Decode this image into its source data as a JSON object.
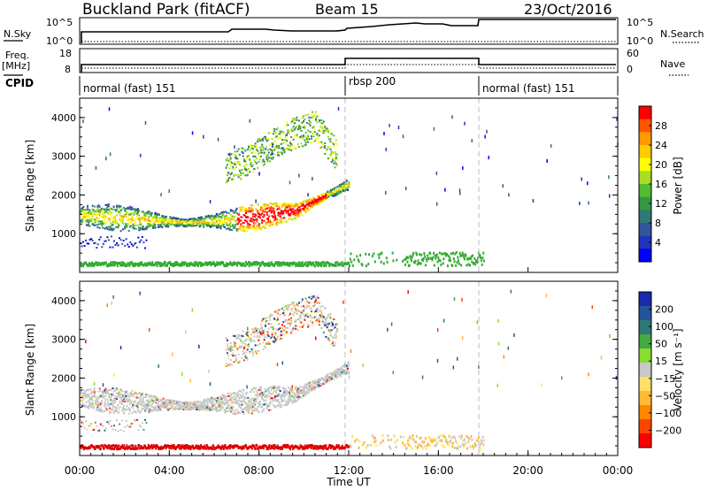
{
  "header": {
    "station": "Buckland Park (fitACF)",
    "beam": "Beam 15",
    "date": "23/Oct/2016"
  },
  "noise_panel": {
    "left_label": "N.Sky",
    "right_label": "N.Search",
    "left_ticks": [
      "10^5",
      "10^0"
    ],
    "right_ticks": [
      "10^5",
      "10^0"
    ]
  },
  "freq_panel": {
    "left_label": "Freq.",
    "left_unit": "[MHz]",
    "right_label": "Nave",
    "left_ticks": [
      "18",
      "8"
    ],
    "right_ticks": [
      "60",
      "0"
    ]
  },
  "cpid": {
    "label": "CPID",
    "segments": [
      {
        "text": "normal (fast) 151",
        "start_hour": 0
      },
      {
        "text": "rbsp 200",
        "start_hour": 12
      },
      {
        "text": "normal (fast) 151",
        "start_hour": 18
      }
    ]
  },
  "power_colorbar": {
    "label": "Power [dB]",
    "ticks": [
      "28",
      "24",
      "20",
      "16",
      "12",
      "8",
      "4"
    ],
    "colors": [
      "#ff0000",
      "#ff5500",
      "#ff9900",
      "#ffcc00",
      "#ffff00",
      "#aadd22",
      "#55bb33",
      "#339944",
      "#337777",
      "#335599",
      "#2233bb",
      "#0000ff"
    ]
  },
  "velocity_colorbar": {
    "label": "Velocity [m s⁻¹]",
    "ticks": [
      "200",
      "100",
      "50",
      "15",
      "−15",
      "−50",
      "−100",
      "−200"
    ],
    "colors": [
      "#1a2aa8",
      "#225599",
      "#2f7777",
      "#44aa44",
      "#88dd33",
      "#c8c8c8",
      "#ffe066",
      "#ffbb33",
      "#ff8800",
      "#ff4400",
      "#ff0000"
    ]
  },
  "x_axis": {
    "title": "Time UT",
    "ticks": [
      "00:00",
      "04:00",
      "08:00",
      "12:00",
      "16:00",
      "20:00",
      "00:00"
    ]
  },
  "chart_data": [
    {
      "type": "line",
      "title": "N.Sky / N.Search",
      "x": [
        0,
        0.1,
        6.2,
        6.5,
        7.0,
        9.8,
        10.0,
        11.9,
        12.0,
        13.8,
        15.0,
        17.8,
        18.0,
        24.0
      ],
      "y_level": [
        0,
        0.42,
        0.42,
        0.5,
        0.47,
        0.45,
        0.52,
        0.52,
        0.62,
        0.8,
        0.85,
        0.7,
        1.0,
        1.0
      ],
      "note_series": [
        "N.Sky",
        "N.Search"
      ]
    },
    {
      "type": "line",
      "title": "Freq. / Nave",
      "x": [
        0,
        12,
        18,
        24
      ],
      "freq_mhz": [
        10,
        12,
        10,
        10
      ],
      "nave": [
        20,
        40,
        20,
        20
      ]
    },
    {
      "type": "heatmap",
      "title": "Power [dB]",
      "xlabel": "Time UT",
      "ylabel": "Slant Range [km]",
      "x_range_hours": [
        0,
        24
      ],
      "ylim": [
        0,
        4500
      ],
      "y_ticks": [
        1000,
        2000,
        3000,
        4000
      ],
      "clim": [
        0,
        30
      ],
      "scatter_bands": [
        {
          "t": [
            0,
            12
          ],
          "range_km_center": [
            1500,
            1400,
            1300,
            1400,
            1600,
            2300
          ],
          "value_db": 14
        },
        {
          "t": [
            6.5,
            11.5
          ],
          "range_km_center": [
            2700,
            2900,
            3300,
            3600,
            3800,
            3000
          ],
          "value_db": 16
        },
        {
          "t": [
            0,
            18
          ],
          "range_km_center": [
            250
          ],
          "value_db": 10
        }
      ]
    },
    {
      "type": "heatmap",
      "title": "Velocity [m s⁻¹]",
      "xlabel": "Time UT",
      "ylabel": "Slant Range [km]",
      "x_range_hours": [
        0,
        24
      ],
      "ylim": [
        0,
        4500
      ],
      "y_ticks": [
        1000,
        2000,
        3000,
        4000
      ],
      "clim": [
        -200,
        200
      ],
      "scatter_bands": [
        {
          "t": [
            0,
            12
          ],
          "range_km_center": [
            1500,
            1400,
            1300,
            1400,
            1600,
            2300
          ],
          "value_ms": 0
        },
        {
          "t": [
            6.5,
            11.5
          ],
          "range_km_center": [
            2700,
            2900,
            3300,
            3600,
            3800,
            3000
          ],
          "value_ms": 0
        },
        {
          "t": [
            0,
            18
          ],
          "range_km_center": [
            250
          ],
          "value_ms": -150
        }
      ]
    }
  ],
  "colors": {
    "frame": "#000000",
    "dashed_divider": "#bbbbbb",
    "ground_scatter_power": "#33aa33",
    "ground_scatter_velocity": "#dd0000"
  }
}
